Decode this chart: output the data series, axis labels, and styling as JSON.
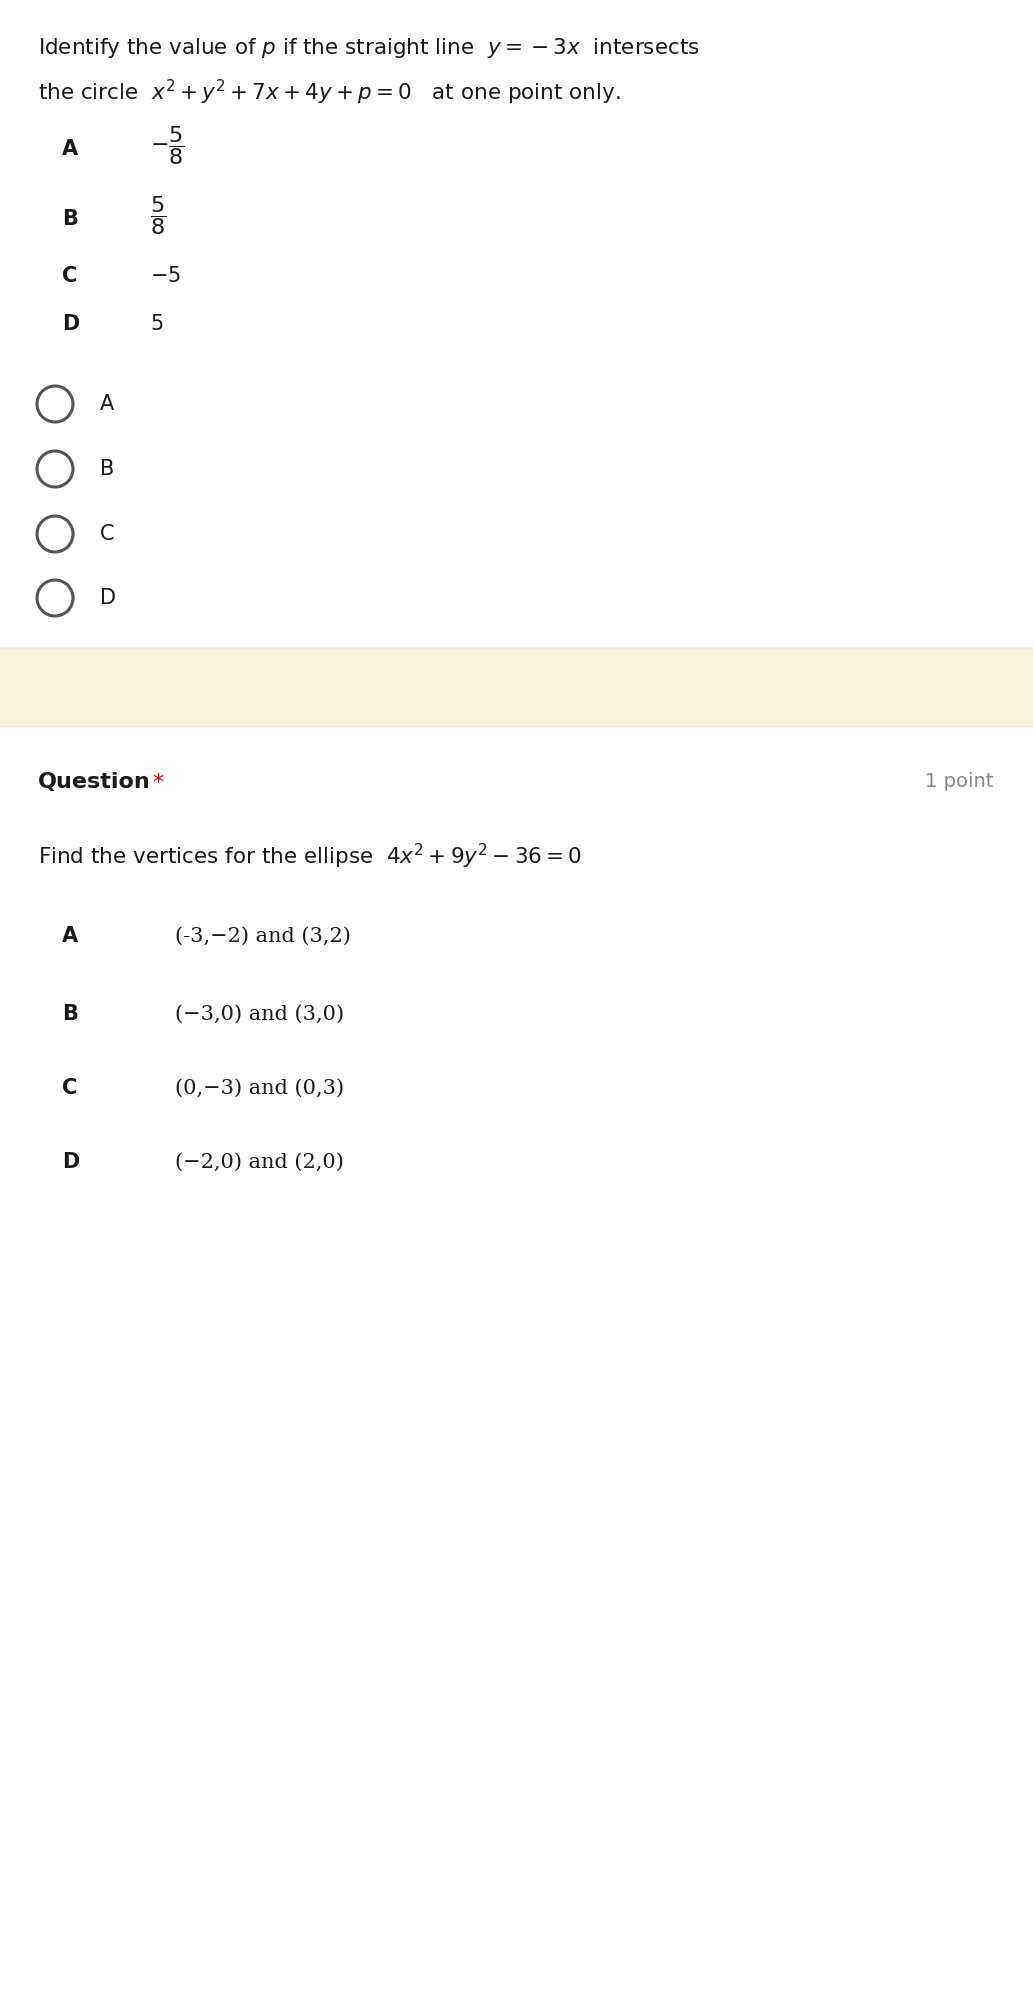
{
  "bg_color": "#ffffff",
  "q1_title_line1": "Identify the value of $p$ if the straight line  $y=-3x$  intersects",
  "q1_title_line2": "the circle  $x^2+y^2+7x+4y+p=0$   at one point only.",
  "q1_options_labels": [
    "A",
    "B",
    "C",
    "D"
  ],
  "q1_options_math": [
    "$-\\dfrac{5}{8}$",
    "$\\dfrac{5}{8}$",
    "$-5$",
    "$5$"
  ],
  "q1_radio_labels": [
    "A",
    "B",
    "C",
    "D"
  ],
  "q2_question_label": "Question",
  "q2_point_label": "1 point",
  "q2_title": "Find the vertices for the ellipse  $4x^2+9y^2-36=0$",
  "q2_options_labels": [
    "A",
    "B",
    "C",
    "D"
  ],
  "q2_options_text": [
    "$(\\mathbf{-3,-2})$ and $(\\mathbf{3,2})$",
    "$(\\mathbf{-3,0})$ and $(\\mathbf{3,0})$",
    "$(\\mathbf{0,-3})$ and $(\\mathbf{0,3})$",
    "$(\\mathbf{-2,0})$ and $(\\mathbf{2,0})$"
  ],
  "q2_options_plain": [
    "(-3,−2) and (3,2)",
    "(−3,0) and (3,0)",
    "(0,−3) and (0,3)",
    "(−2,0) and (2,0)"
  ],
  "text_color": "#1a1a1a",
  "radio_color": "#555555",
  "star_color": "#cc0000",
  "separator_band_color": "#f5f0e0",
  "separator_border_color": "#e0ddd0",
  "point_color": "#888888"
}
